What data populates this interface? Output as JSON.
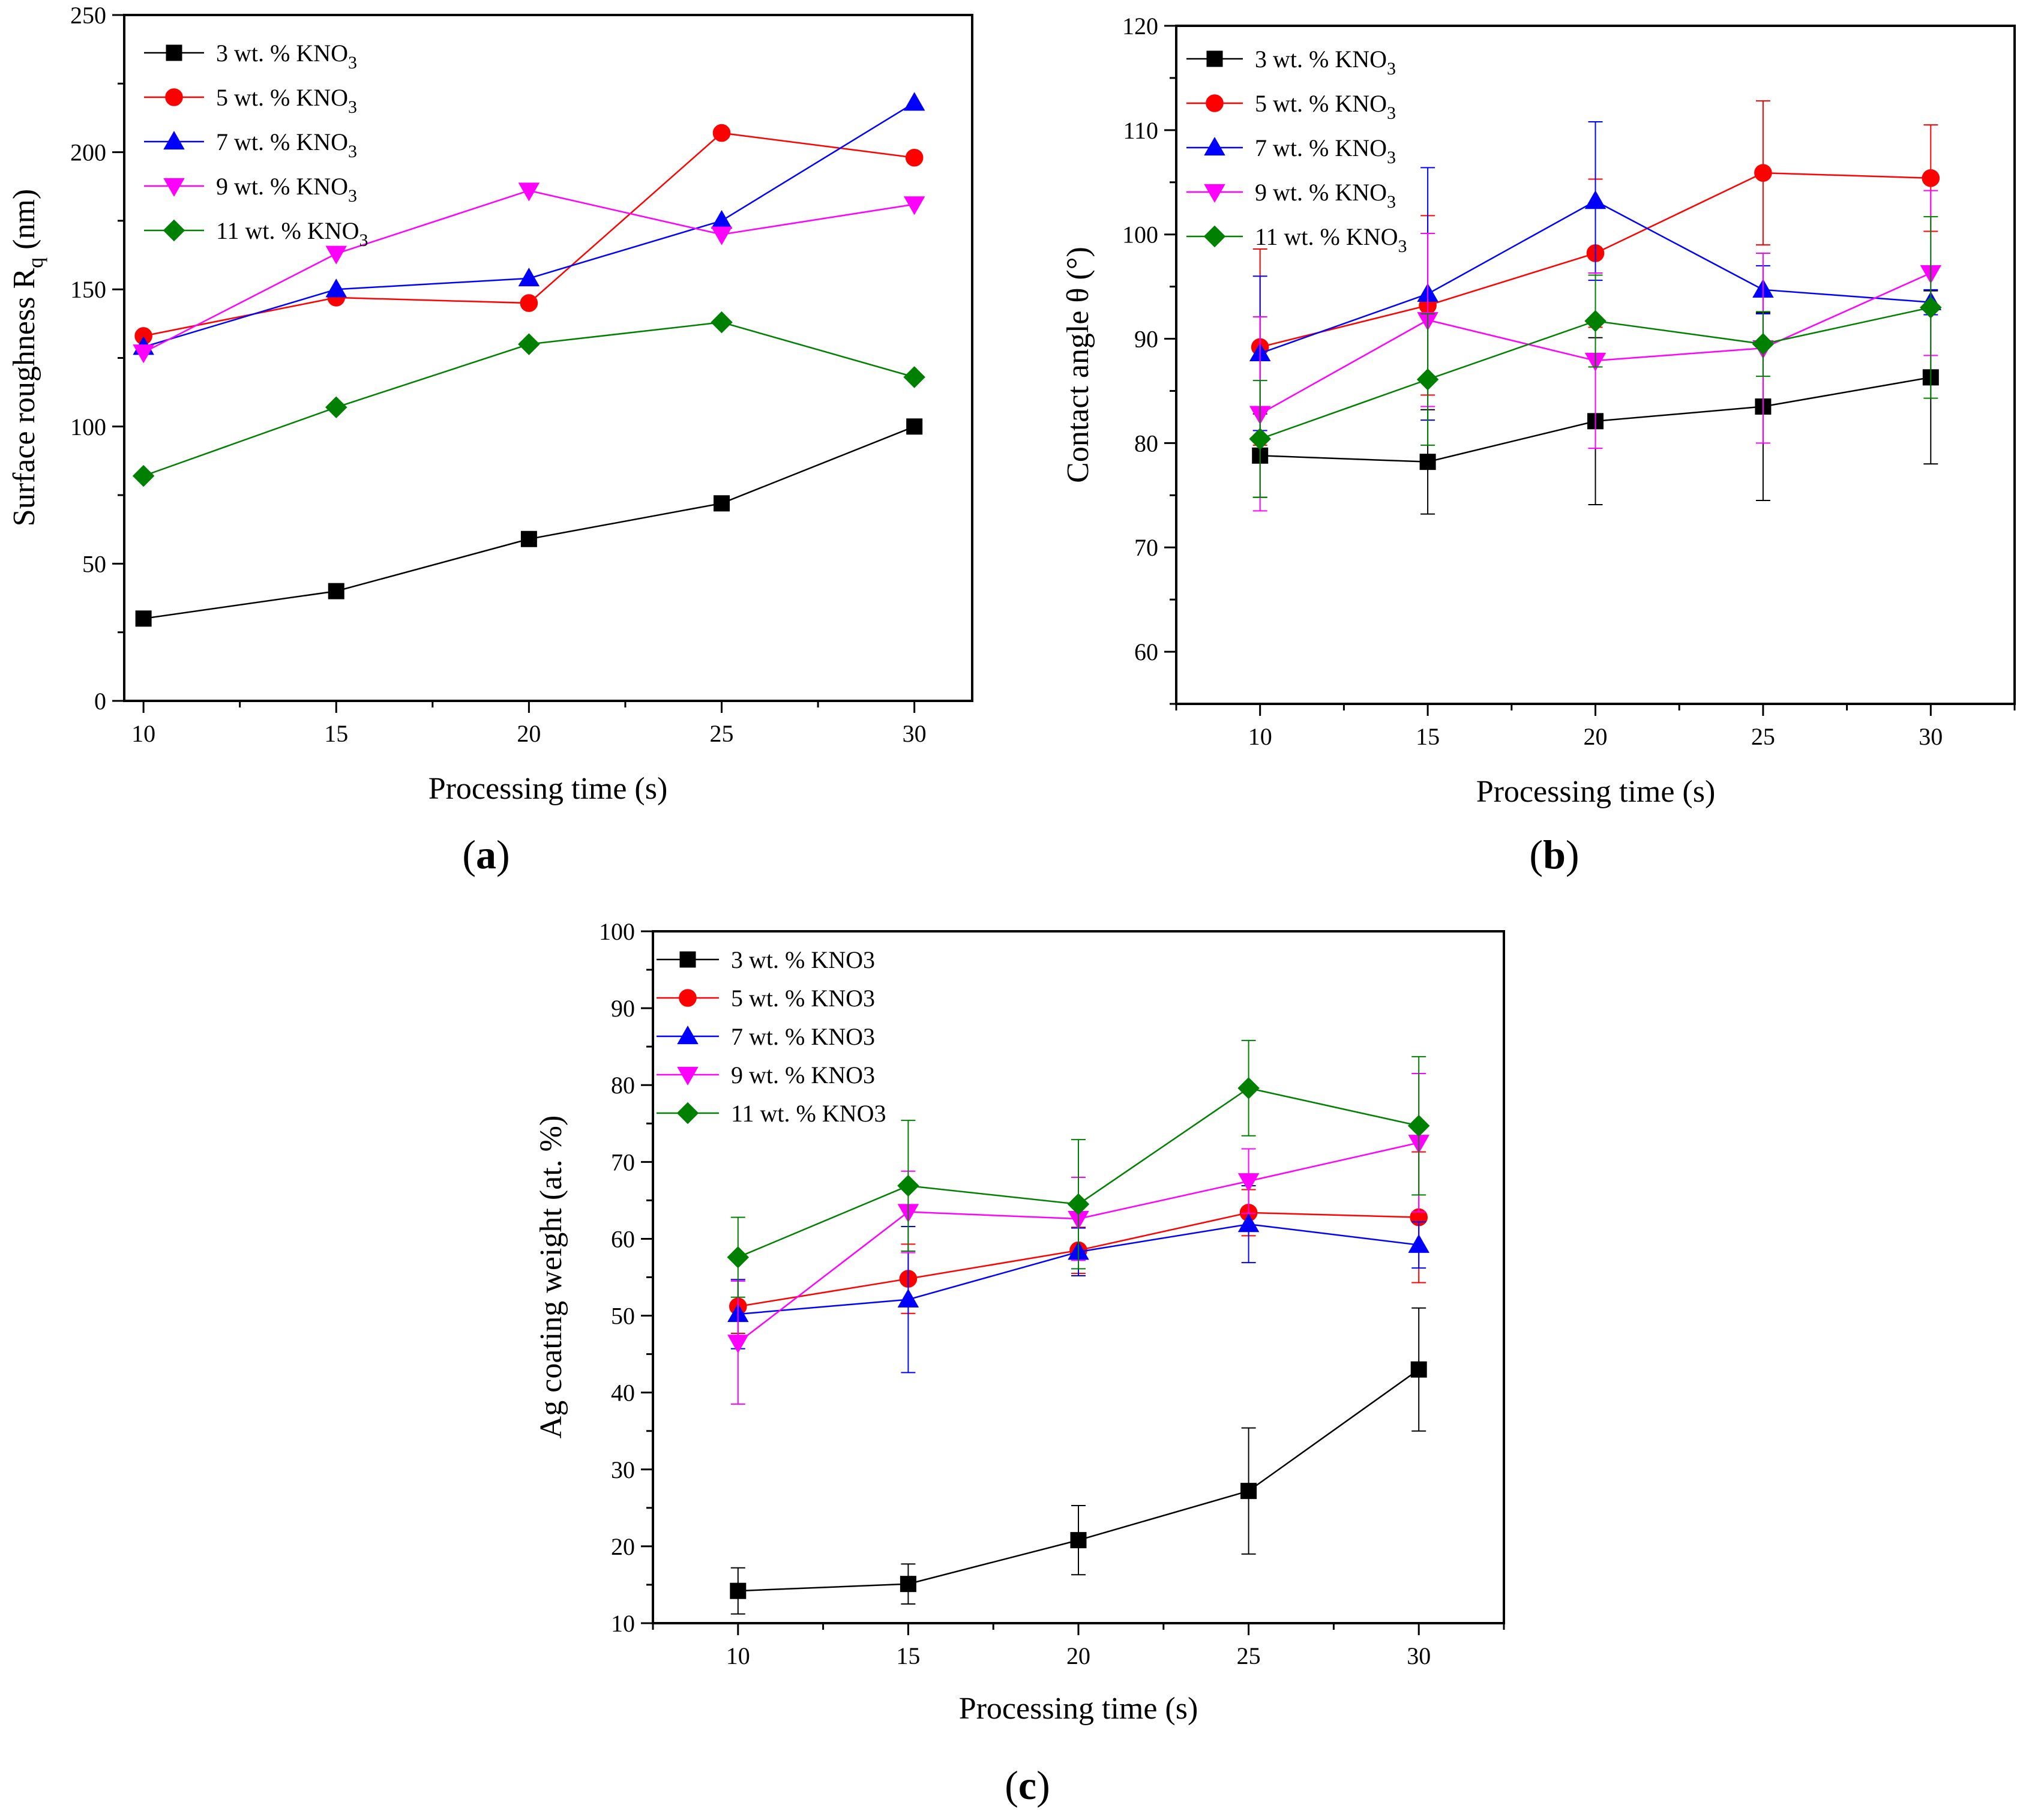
{
  "panels": [
    {
      "id": "a",
      "label_open": "(",
      "label_letter": "a",
      "label_close": ")",
      "xlabel": "Processing time (s)",
      "ylabel_main": "Surface roughness R",
      "ylabel_sub": "q",
      "ylabel_tail": " (nm)",
      "xlim": [
        9.5,
        31.5
      ],
      "ylim": [
        0,
        250
      ],
      "xticks": [
        10,
        15,
        20,
        25,
        30
      ],
      "yticks": [
        0,
        50,
        100,
        150,
        200,
        250
      ],
      "ytick_labels": [
        "0",
        "50",
        "100",
        "150",
        "200",
        "250"
      ],
      "legend_position": "top-left",
      "error_bars": false
    },
    {
      "id": "b",
      "label_open": "(",
      "label_letter": "b",
      "label_close": ")",
      "xlabel": "Processing time (s)",
      "ylabel_main": "Contact angle θ (°)",
      "ylabel_sub": "",
      "ylabel_tail": "",
      "xlim": [
        7.5,
        32.5
      ],
      "ylim": [
        55,
        120
      ],
      "xticks": [
        10,
        15,
        20,
        25,
        30
      ],
      "yticks": [
        60,
        70,
        80,
        90,
        100,
        110,
        120
      ],
      "ytick_labels": [
        "60",
        "70",
        "80",
        "90",
        "100",
        "110",
        "120"
      ],
      "legend_position": "top-left",
      "error_bars": true
    },
    {
      "id": "c",
      "label_open": "(",
      "label_letter": "c",
      "label_close": ")",
      "xlabel": "Processing time (s)",
      "ylabel_main": "Ag coating weight (at. %)",
      "ylabel_sub": "",
      "ylabel_tail": "",
      "xlim": [
        7.5,
        32.5
      ],
      "ylim": [
        10,
        100
      ],
      "xticks": [
        10,
        15,
        20,
        25,
        30
      ],
      "yticks": [
        10,
        20,
        30,
        40,
        50,
        60,
        70,
        80,
        90,
        100
      ],
      "ytick_labels": [
        "10",
        "20",
        "30",
        "40",
        "50",
        "60",
        "70",
        "80",
        "90",
        "100"
      ],
      "legend_position": "top-left",
      "error_bars": true
    }
  ],
  "chart_data": [
    {
      "panel": "a",
      "type": "line",
      "title": "",
      "xlabel": "Processing time (s)",
      "ylabel": "Surface roughness Rq (nm)",
      "x": [
        10,
        15,
        20,
        25,
        30
      ],
      "ylim": [
        0,
        250
      ],
      "series": [
        {
          "name": "3 wt. % KNO",
          "name_sub": "3",
          "color": "#000000",
          "marker": "square",
          "values": [
            30,
            40,
            59,
            72,
            100
          ]
        },
        {
          "name": "5 wt. % KNO",
          "name_sub": "3",
          "color": "#ff0000",
          "marker": "circle",
          "values": [
            133,
            147,
            145,
            207,
            198
          ]
        },
        {
          "name": "7 wt. % KNO",
          "name_sub": "3",
          "color": "#0000ff",
          "marker": "triangle-up",
          "values": [
            129,
            150,
            154,
            175,
            218
          ]
        },
        {
          "name": "9 wt. % KNO",
          "name_sub": "3",
          "color": "#ff00ff",
          "marker": "triangle-down",
          "values": [
            127,
            163,
            186,
            170,
            181
          ]
        },
        {
          "name": "11 wt. % KNO",
          "name_sub": "3",
          "color": "#008000",
          "marker": "diamond",
          "values": [
            82,
            107,
            130,
            138,
            118
          ]
        }
      ]
    },
    {
      "panel": "b",
      "type": "line",
      "title": "",
      "xlabel": "Processing time (s)",
      "ylabel": "Contact angle θ (°)",
      "x": [
        10,
        15,
        20,
        25,
        30
      ],
      "ylim": [
        55,
        120
      ],
      "series": [
        {
          "name": "3 wt. % KNO",
          "name_sub": "3",
          "color": "#000000",
          "marker": "square",
          "values": [
            78.8,
            78.2,
            82.1,
            83.5,
            86.3
          ],
          "errors": [
            4,
            5,
            8,
            9,
            8.3
          ]
        },
        {
          "name": "5 wt. % KNO",
          "name_sub": "3",
          "color": "#ff0000",
          "marker": "circle",
          "values": [
            89.2,
            93.2,
            98.2,
            105.9,
            105.4
          ],
          "errors": [
            9.4,
            8.6,
            7.1,
            6.9,
            5.1
          ]
        },
        {
          "name": "7 wt. % KNO",
          "name_sub": "3",
          "color": "#0000ff",
          "marker": "triangle-up",
          "values": [
            88.6,
            94.3,
            103.2,
            94.7,
            93.5
          ],
          "errors": [
            7.4,
            12.1,
            7.6,
            2.3,
            1.2
          ]
        },
        {
          "name": "9 wt. % KNO",
          "name_sub": "3",
          "color": "#ff00ff",
          "marker": "triangle-down",
          "values": [
            82.8,
            91.8,
            87.9,
            89.1,
            96.3
          ],
          "errors": [
            9.3,
            8.3,
            8.4,
            9.1,
            7.9
          ]
        },
        {
          "name": "11 wt. % KNO",
          "name_sub": "3",
          "color": "#008000",
          "marker": "diamond",
          "values": [
            80.4,
            86.1,
            91.7,
            89.5,
            93.0
          ],
          "errors": [
            5.6,
            6.3,
            4.4,
            3.1,
            8.7
          ]
        }
      ]
    },
    {
      "panel": "c",
      "type": "line",
      "title": "",
      "xlabel": "Processing time (s)",
      "ylabel": "Ag coating weight (at. %)",
      "x": [
        10,
        15,
        20,
        25,
        30
      ],
      "ylim": [
        10,
        100
      ],
      "series": [
        {
          "name": "3 wt. % KNO3",
          "name_sub": "",
          "color": "#000000",
          "marker": "square",
          "values": [
            14.2,
            15.1,
            20.8,
            27.2,
            43.0
          ],
          "errors": [
            3,
            2.6,
            4.5,
            8.2,
            8
          ]
        },
        {
          "name": "5 wt. % KNO3",
          "name_sub": "",
          "color": "#ff0000",
          "marker": "circle",
          "values": [
            51.2,
            54.8,
            58.5,
            63.4,
            62.8
          ],
          "errors": [
            3.5,
            4.5,
            3,
            3,
            8.5
          ]
        },
        {
          "name": "7 wt. % KNO3",
          "name_sub": "",
          "color": "#0000ff",
          "marker": "triangle-up",
          "values": [
            50.2,
            52.1,
            58.3,
            61.9,
            59.2
          ],
          "errors": [
            4.5,
            9.5,
            3.1,
            5,
            3
          ]
        },
        {
          "name": "9 wt. % KNO3",
          "name_sub": "",
          "color": "#ff00ff",
          "marker": "triangle-down",
          "values": [
            46.5,
            63.5,
            62.6,
            67.5,
            72.5
          ],
          "errors": [
            8,
            5.3,
            5.4,
            4.2,
            9
          ]
        },
        {
          "name": "11 wt. % KNO3",
          "name_sub": "",
          "color": "#008000",
          "marker": "diamond",
          "values": [
            57.6,
            66.9,
            64.5,
            79.6,
            74.7
          ],
          "errors": [
            5.2,
            8.5,
            8.4,
            6.2,
            9
          ]
        }
      ]
    }
  ]
}
